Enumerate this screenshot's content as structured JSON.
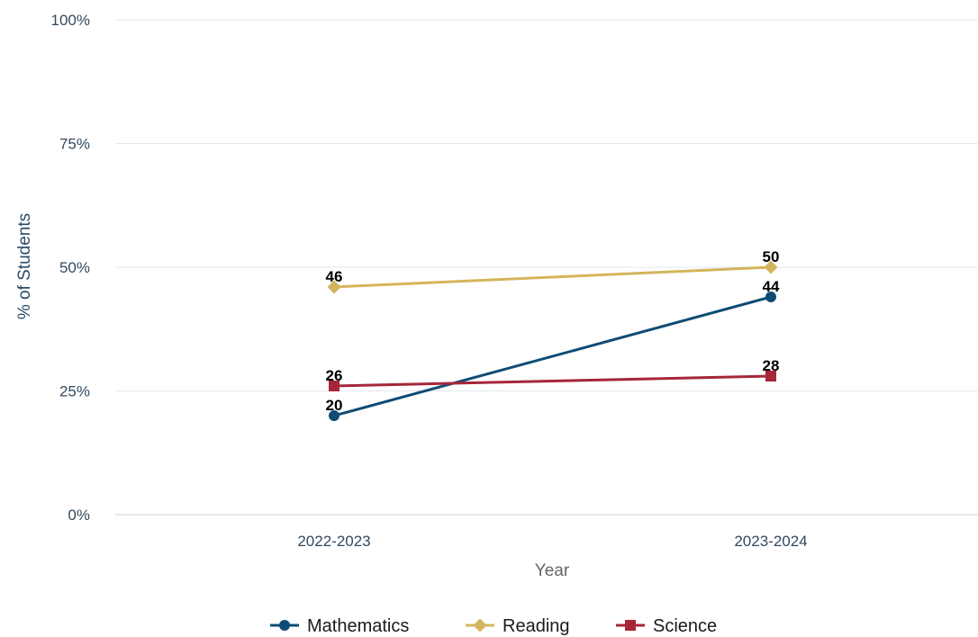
{
  "chart_data": {
    "type": "line",
    "xlabel": "Year",
    "ylabel": "% of Students",
    "categories": [
      "2022-2023",
      "2023-2024"
    ],
    "ylim": [
      0,
      100
    ],
    "yticks": [
      "0%",
      "25%",
      "50%",
      "75%",
      "100%"
    ],
    "grid": true,
    "legend": "bottom-center",
    "series": [
      {
        "name": "Mathematics",
        "values": [
          20,
          44
        ],
        "color": "#0f4c75",
        "marker": "circle"
      },
      {
        "name": "Reading",
        "values": [
          46,
          50
        ],
        "color": "#d4b45c",
        "marker": "diamond"
      },
      {
        "name": "Science",
        "values": [
          26,
          28
        ],
        "color": "#a6263a",
        "marker": "square"
      }
    ]
  }
}
